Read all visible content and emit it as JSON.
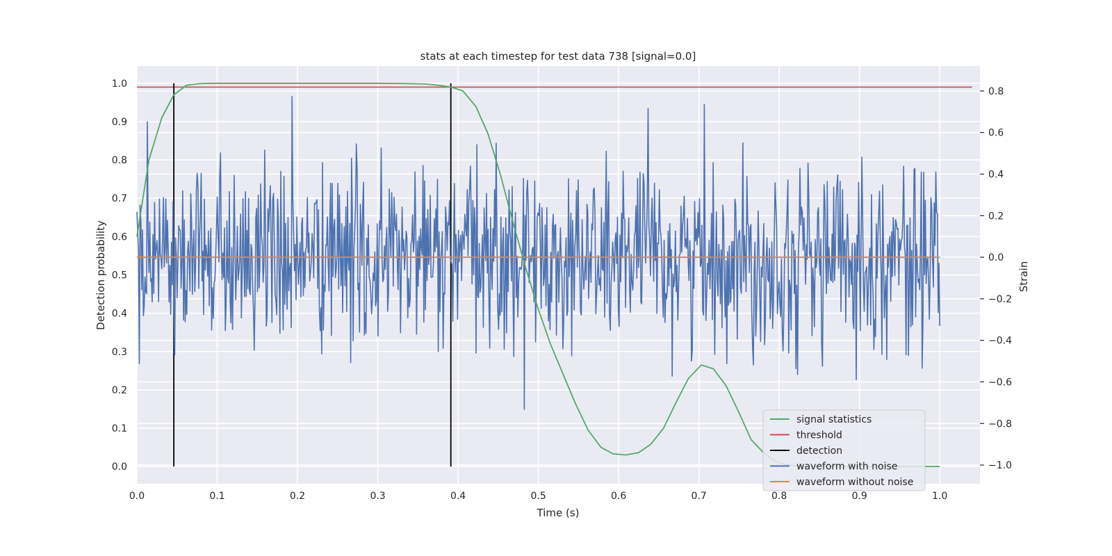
{
  "chart_data": {
    "type": "line",
    "title": "stats at each timestep for test data 738 [signal=0.0]",
    "xlabel": "Time (s)",
    "ylabel": "Detection probability",
    "ylabel_right": "Strain",
    "xlim": [
      0.0,
      1.05
    ],
    "ylim": [
      -0.045,
      1.045
    ],
    "ylim_right": [
      -1.09,
      0.92
    ],
    "xticks": [
      "0.0",
      "0.1",
      "0.2",
      "0.3",
      "0.4",
      "0.5",
      "0.6",
      "0.7",
      "0.8",
      "0.9",
      "1.0"
    ],
    "yticks": [
      "0.0",
      "0.1",
      "0.2",
      "0.3",
      "0.4",
      "0.5",
      "0.6",
      "0.7",
      "0.8",
      "0.9",
      "1.0"
    ],
    "yticks_right": [
      "−1.0",
      "−0.8",
      "−0.6",
      "−0.4",
      "−0.2",
      "0.0",
      "0.2",
      "0.4",
      "0.6",
      "0.8"
    ],
    "grid": true,
    "legend_position": "lower-right",
    "threshold": 0.99,
    "detections": [
      0.046,
      0.391
    ],
    "series": [
      {
        "name": "signal statistics",
        "axis": "left",
        "color": "#55a868",
        "x": [
          0.0,
          0.015,
          0.031,
          0.046,
          0.062,
          0.078,
          0.094,
          0.11,
          0.2,
          0.3,
          0.34,
          0.36,
          0.375,
          0.391,
          0.406,
          0.422,
          0.437,
          0.453,
          0.468,
          0.484,
          0.5,
          0.515,
          0.531,
          0.546,
          0.562,
          0.578,
          0.593,
          0.609,
          0.625,
          0.64,
          0.656,
          0.671,
          0.687,
          0.703,
          0.718,
          0.734,
          0.75,
          0.765,
          0.781,
          0.796,
          0.812,
          0.828,
          0.85,
          0.9,
          0.95,
          1.0
        ],
        "y": [
          0.6,
          0.8,
          0.91,
          0.97,
          0.995,
          0.999,
          1.0,
          1.0,
          1.0,
          1.0,
          0.999,
          0.998,
          0.995,
          0.99,
          0.98,
          0.94,
          0.87,
          0.76,
          0.64,
          0.52,
          0.41,
          0.32,
          0.24,
          0.165,
          0.095,
          0.05,
          0.033,
          0.03,
          0.036,
          0.058,
          0.1,
          0.165,
          0.23,
          0.265,
          0.255,
          0.21,
          0.14,
          0.07,
          0.035,
          0.012,
          0.003,
          0.0,
          0.0,
          0.0,
          0.0,
          0.0
        ]
      },
      {
        "name": "threshold",
        "axis": "left",
        "color": "#c44e52"
      },
      {
        "name": "detection",
        "axis": "left",
        "color": "#000000"
      },
      {
        "name": "waveform with noise",
        "axis": "right",
        "color": "#4c72b0",
        "x_range": [
          0.0,
          1.0
        ],
        "points": 1000,
        "std": 0.22
      },
      {
        "name": "waveform without noise",
        "axis": "right",
        "color": "#dd8452",
        "value": 0.0
      }
    ]
  }
}
